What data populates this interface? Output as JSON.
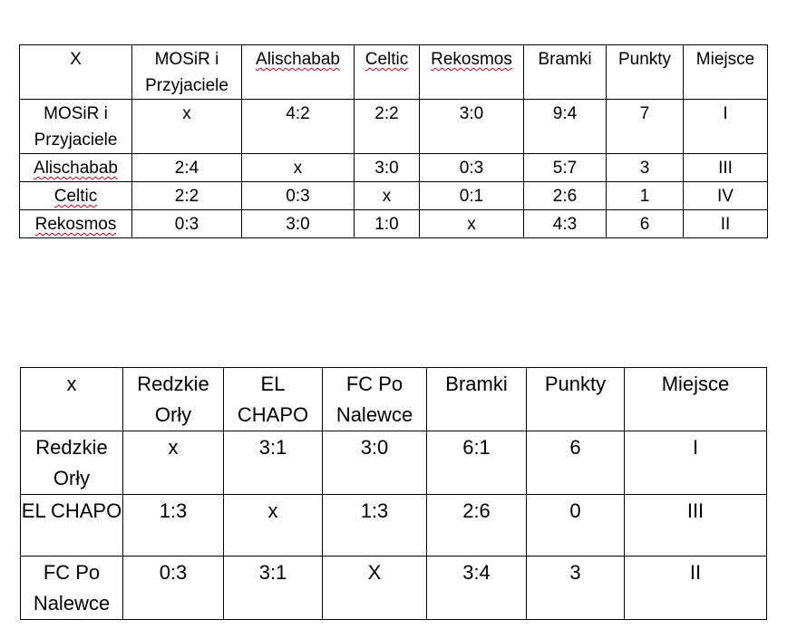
{
  "table1": {
    "header": [
      "X",
      "MOSiR i Przyjaciele",
      "Alischabab",
      "Celtic",
      "Rekosmos",
      "Bramki",
      "Punkty",
      "Miejsce"
    ],
    "rows": [
      [
        "MOSiR i Przyjaciele",
        "x",
        "4:2",
        "2:2",
        "3:0",
        "9:4",
        "7",
        "I"
      ],
      [
        "Alischabab",
        "2:4",
        "x",
        "3:0",
        "0:3",
        "5:7",
        "3",
        "III"
      ],
      [
        "Celtic",
        "2:2",
        "0:3",
        "x",
        "0:1",
        "2:6",
        "1",
        "IV"
      ],
      [
        "Rekosmos",
        "0:3",
        "3:0",
        "1:0",
        "x",
        "4:3",
        "6",
        "II"
      ]
    ]
  },
  "table2": {
    "header": [
      "x",
      "Redzkie Orły",
      "EL CHAPO",
      "FC Po Nalewce",
      "Bramki",
      "Punkty",
      "Miejsce"
    ],
    "rows": [
      [
        "Redzkie Orły",
        "x",
        "3:1",
        "3:0",
        "6:1",
        "6",
        "I"
      ],
      [
        "EL CHAPO",
        "1:3",
        "x",
        "1:3",
        "2:6",
        "0",
        "III"
      ],
      [
        "FC Po Nalewce",
        "0:3",
        "3:1",
        "X",
        "3:4",
        "3",
        "II"
      ]
    ]
  },
  "colors": {
    "border": "#000000",
    "text": "#000000",
    "spellcheck_underline": "#d0021b"
  }
}
